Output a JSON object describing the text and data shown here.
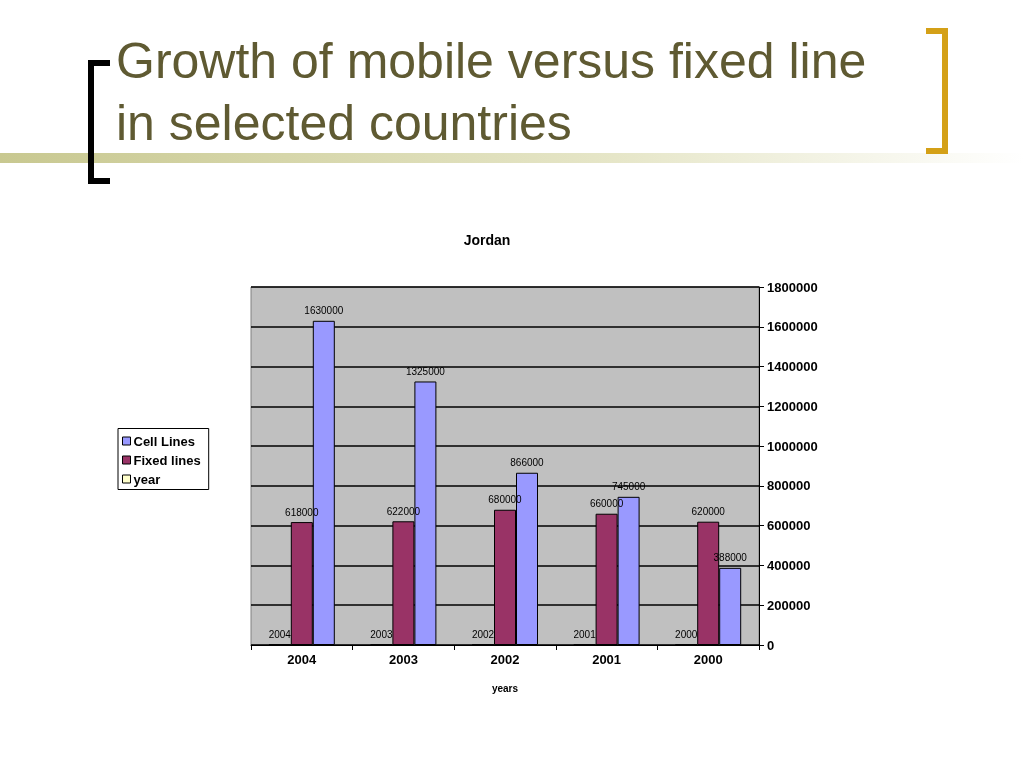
{
  "chart_data": {
    "type": "bar",
    "title": "Growth of mobile versus fixed line in selected countries",
    "subtitle": "Jordan",
    "xlabel": "years",
    "categories": [
      "2004",
      "2003",
      "2002",
      "2001",
      "2000"
    ],
    "series": [
      {
        "name": "Cell Lines",
        "color": "#9999ff",
        "values": [
          1630000,
          1325000,
          866000,
          745000,
          388000
        ]
      },
      {
        "name": "Fixed lines",
        "color": "#993366",
        "values": [
          618000,
          622000,
          680000,
          660000,
          620000
        ]
      },
      {
        "name": "year",
        "color": "#ffffcc",
        "values": [
          2004,
          2003,
          2002,
          2001,
          2000
        ]
      }
    ],
    "ylim": [
      0,
      1800000
    ],
    "yticks": [
      0,
      200000,
      400000,
      600000,
      800000,
      1000000,
      1200000,
      1400000,
      1600000,
      1800000
    ],
    "grid": "y",
    "legend": "left",
    "data_labels": true
  }
}
